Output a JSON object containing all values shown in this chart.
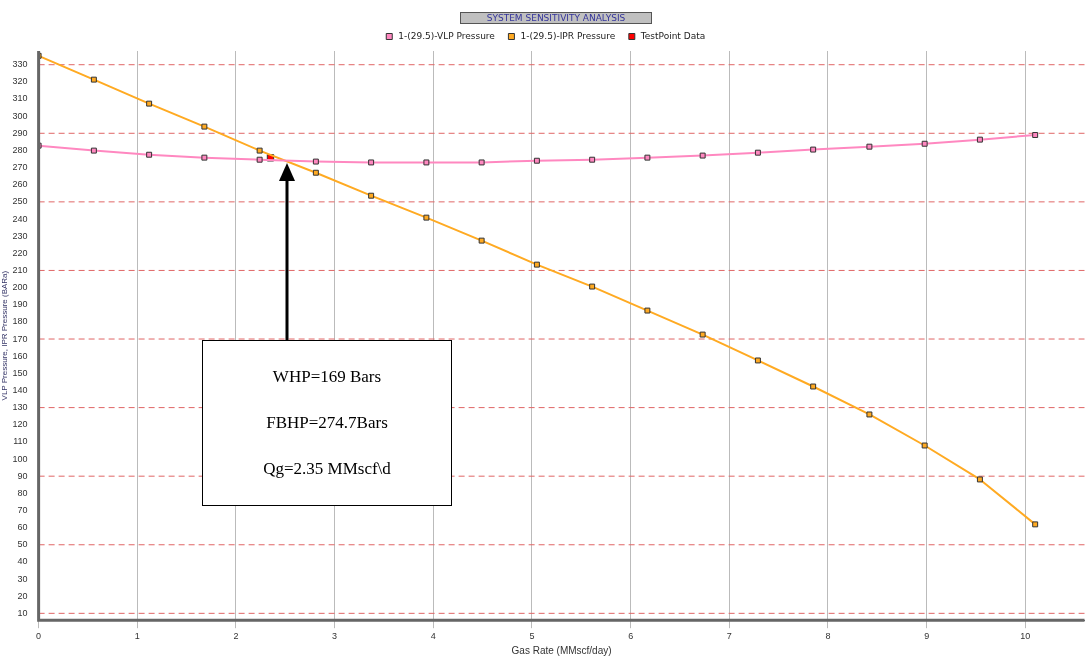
{
  "chart_data": {
    "type": "line",
    "title": "SYSTEM SENSITIVITY ANALYSIS",
    "xlabel": "Gas Rate (MMscf/day)",
    "ylabel": "VLP Pressure, IPR Pressure (BARa)",
    "x": [
      0,
      0.56,
      1.12,
      1.68,
      2.24,
      2.81,
      3.37,
      3.93,
      4.49,
      5.05,
      5.61,
      6.17,
      6.73,
      7.29,
      7.85,
      8.42,
      8.98,
      9.54,
      10.1
    ],
    "series": [
      {
        "name": "1-(29.5)-VLP Pressure",
        "color": "#ff88c0",
        "values": [
          282.8,
          279.9,
          277.5,
          275.8,
          274.6,
          273.5,
          273,
          273,
          273,
          274,
          274.6,
          275.8,
          277,
          278.7,
          280.5,
          282.2,
          283.9,
          286.3,
          289
        ]
      },
      {
        "name": "1-(29.5)-IPR Pressure",
        "color": "#ffaa22",
        "values": [
          335.2,
          321.3,
          307.3,
          293.9,
          279.9,
          267,
          253.6,
          240.8,
          227.4,
          213.4,
          200.6,
          186.6,
          172.6,
          157.5,
          142.3,
          126,
          107.9,
          88.1,
          61.9
        ]
      },
      {
        "name": "TestPoint Data",
        "type": "scatter",
        "color": "#ff0000",
        "x": [
          2.35
        ],
        "values": [
          275.7
        ]
      }
    ],
    "xlim": [
      0,
      10.6
    ],
    "xticks": [
      0,
      1,
      2,
      3,
      4,
      5,
      6,
      7,
      8,
      9,
      10
    ],
    "ylim": [
      6,
      338
    ],
    "yticks": [
      10,
      20,
      30,
      40,
      50,
      60,
      70,
      80,
      90,
      100,
      110,
      120,
      130,
      140,
      150,
      160,
      170,
      180,
      190,
      200,
      210,
      220,
      230,
      240,
      250,
      260,
      270,
      280,
      290,
      300,
      310,
      320,
      330
    ],
    "grid": "x",
    "legend": "top",
    "marker": "square",
    "line_style": "solid",
    "ref_lines": [
      {
        "axis": "y",
        "value": 10,
        "color": "#e06666",
        "line_style": "dashed"
      },
      {
        "axis": "y",
        "value": 50,
        "color": "#e06666",
        "line_style": "dashed"
      },
      {
        "axis": "y",
        "value": 90,
        "color": "#e06666",
        "line_style": "dashed"
      },
      {
        "axis": "y",
        "value": 130,
        "color": "#e06666",
        "line_style": "dashed"
      },
      {
        "axis": "y",
        "value": 170,
        "color": "#e06666",
        "line_style": "dashed"
      },
      {
        "axis": "y",
        "value": 210,
        "color": "#e06666",
        "line_style": "dashed"
      },
      {
        "axis": "y",
        "value": 250,
        "color": "#e06666",
        "line_style": "dashed"
      },
      {
        "axis": "y",
        "value": 290,
        "color": "#e06666",
        "line_style": "dashed"
      },
      {
        "axis": "y",
        "value": 330,
        "color": "#e06666",
        "line_style": "dashed"
      }
    ],
    "annotations": [
      "WHP=169 Bars",
      "FBHP=274.7Bars",
      "Qg=2.35 MMscf\\d"
    ]
  }
}
